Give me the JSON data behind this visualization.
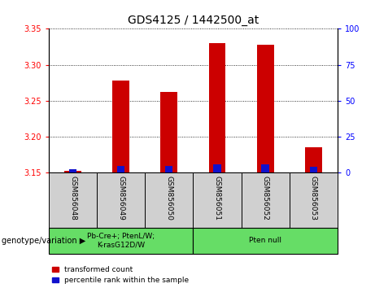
{
  "title": "GDS4125 / 1442500_at",
  "samples": [
    "GSM856048",
    "GSM856049",
    "GSM856050",
    "GSM856051",
    "GSM856052",
    "GSM856053"
  ],
  "transformed_counts": [
    3.153,
    3.278,
    3.262,
    3.33,
    3.328,
    3.186
  ],
  "percentile_ranks": [
    2.5,
    5.0,
    5.0,
    6.0,
    6.0,
    4.0
  ],
  "ylim_left": [
    3.15,
    3.35
  ],
  "ylim_right": [
    0,
    100
  ],
  "yticks_left": [
    3.15,
    3.2,
    3.25,
    3.3,
    3.35
  ],
  "yticks_right": [
    0,
    25,
    50,
    75,
    100
  ],
  "bar_width": 0.35,
  "red_color": "#cc0000",
  "blue_color": "#1111cc",
  "group1_label": "Pb-Cre+; PtenL/W;\nK-rasG12D/W",
  "group2_label": "Pten null",
  "group1_indices": [
    0,
    1,
    2
  ],
  "group2_indices": [
    3,
    4,
    5
  ],
  "genotype_label": "genotype/variation",
  "legend_red": "transformed count",
  "legend_blue": "percentile rank within the sample",
  "sample_bg": "#d0d0d0",
  "group_bg": "#66dd66",
  "plot_bg": "#ffffff",
  "fig_bg": "#ffffff"
}
